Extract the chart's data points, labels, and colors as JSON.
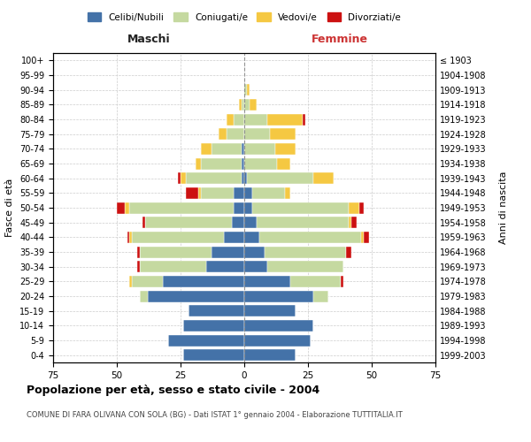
{
  "age_groups": [
    "0-4",
    "5-9",
    "10-14",
    "15-19",
    "20-24",
    "25-29",
    "30-34",
    "35-39",
    "40-44",
    "45-49",
    "50-54",
    "55-59",
    "60-64",
    "65-69",
    "70-74",
    "75-79",
    "80-84",
    "85-89",
    "90-94",
    "95-99",
    "100+"
  ],
  "birth_years": [
    "1999-2003",
    "1994-1998",
    "1989-1993",
    "1984-1988",
    "1979-1983",
    "1974-1978",
    "1969-1973",
    "1964-1968",
    "1959-1963",
    "1954-1958",
    "1949-1953",
    "1944-1948",
    "1939-1943",
    "1934-1938",
    "1929-1933",
    "1924-1928",
    "1919-1923",
    "1914-1918",
    "1909-1913",
    "1904-1908",
    "≤ 1903"
  ],
  "colors": {
    "celibi": "#4472a8",
    "coniugati": "#c5d9a0",
    "vedovi": "#f5c842",
    "divorziati": "#cc1111"
  },
  "males": {
    "celibi": [
      24,
      30,
      24,
      22,
      38,
      32,
      15,
      13,
      8,
      5,
      4,
      4,
      1,
      1,
      1,
      0,
      0,
      0,
      0,
      0,
      0
    ],
    "coniugati": [
      0,
      0,
      0,
      0,
      3,
      12,
      26,
      28,
      36,
      34,
      41,
      13,
      22,
      16,
      12,
      7,
      4,
      1,
      0,
      0,
      0
    ],
    "vedovi": [
      0,
      0,
      0,
      0,
      0,
      1,
      0,
      0,
      1,
      0,
      2,
      1,
      2,
      2,
      4,
      3,
      3,
      1,
      0,
      0,
      0
    ],
    "divorziati": [
      0,
      0,
      0,
      0,
      0,
      0,
      1,
      1,
      1,
      1,
      3,
      5,
      1,
      0,
      0,
      0,
      0,
      0,
      0,
      0,
      0
    ]
  },
  "females": {
    "celibi": [
      20,
      26,
      27,
      20,
      27,
      18,
      9,
      8,
      6,
      5,
      3,
      3,
      1,
      0,
      0,
      0,
      0,
      0,
      0,
      0,
      0
    ],
    "coniugati": [
      0,
      0,
      0,
      0,
      6,
      20,
      30,
      32,
      40,
      36,
      38,
      13,
      26,
      13,
      12,
      10,
      9,
      2,
      1,
      0,
      0
    ],
    "vedovi": [
      0,
      0,
      0,
      0,
      0,
      0,
      0,
      0,
      1,
      1,
      4,
      2,
      8,
      5,
      8,
      10,
      14,
      3,
      1,
      0,
      0
    ],
    "divorziati": [
      0,
      0,
      0,
      0,
      0,
      1,
      0,
      2,
      2,
      2,
      2,
      0,
      0,
      0,
      0,
      0,
      1,
      0,
      0,
      0,
      0
    ]
  },
  "title": "Popolazione per età, sesso e stato civile - 2004",
  "subtitle": "COMUNE DI FARA OLIVANA CON SOLA (BG) - Dati ISTAT 1° gennaio 2004 - Elaborazione TUTTITALIA.IT",
  "xlabel_left": "Maschi",
  "xlabel_right": "Femmine",
  "ylabel_left": "Fasce di età",
  "ylabel_right": "Anni di nascita",
  "xlim": 75,
  "legend_labels": [
    "Celibi/Nubili",
    "Coniugati/e",
    "Vedovi/e",
    "Divorziati/e"
  ],
  "background_color": "#ffffff",
  "grid_color": "#cccccc"
}
